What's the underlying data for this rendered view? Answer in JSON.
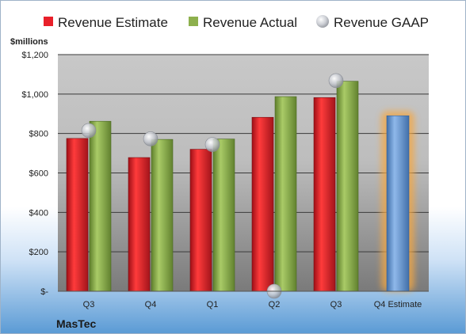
{
  "chart_data": {
    "type": "bar",
    "company": "MasTec",
    "ylabel": "$millions",
    "ylim": [
      0,
      1200
    ],
    "yticks": [
      0,
      200,
      400,
      600,
      800,
      1000,
      1200
    ],
    "ytick_labels": [
      "$-",
      "$200",
      "$400",
      "$600",
      "$800",
      "$1,000",
      "$1,200"
    ],
    "categories": [
      "Q3",
      "Q4",
      "Q1",
      "Q2",
      "Q3",
      "Q4 Estimate"
    ],
    "grid": true,
    "legend_position": "top",
    "series": [
      {
        "name": "Revenue Estimate",
        "kind": "bar",
        "color": "#e8202a",
        "values": [
          775,
          678,
          720,
          882,
          982,
          null
        ]
      },
      {
        "name": "Revenue Actual",
        "kind": "bar",
        "color": "#8db04d",
        "values": [
          862,
          770,
          772,
          987,
          1065,
          null
        ]
      },
      {
        "name": "Revenue GAAP",
        "kind": "marker",
        "color": "#b8bcc4",
        "values": [
          815,
          773,
          744,
          0,
          1068,
          null
        ]
      },
      {
        "name": "Q4 Estimate",
        "kind": "bar",
        "color": "#6f9fd8",
        "highlight": "#f5a742",
        "values": [
          null,
          null,
          null,
          null,
          null,
          890
        ]
      }
    ]
  }
}
